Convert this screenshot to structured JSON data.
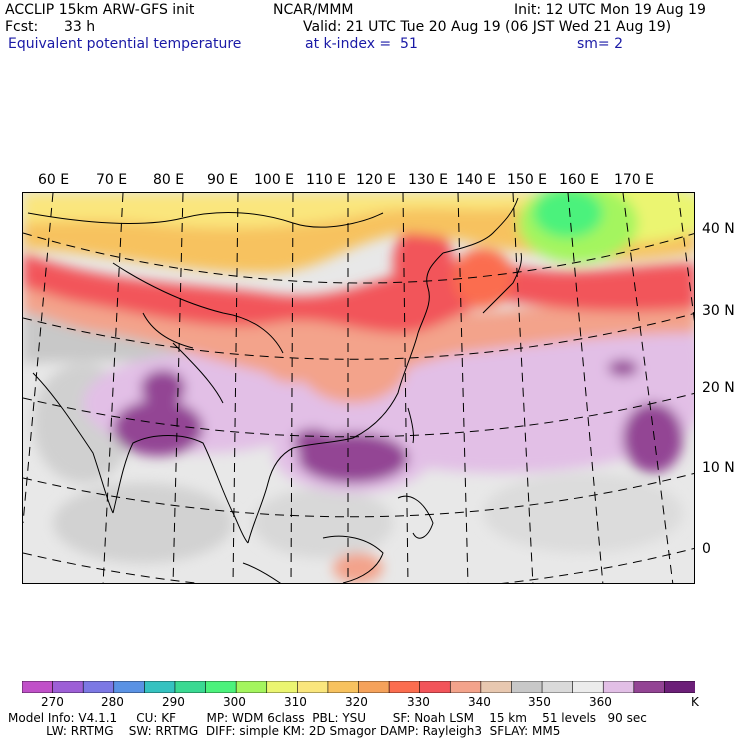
{
  "header": {
    "model": "ACCLIP 15km ARW-GFS init",
    "org": "NCAR/MMM",
    "init": "Init: 12 UTC Mon 19 Aug 19",
    "fcst_label": "Fcst:",
    "fcst_value": "33 h",
    "valid": "Valid: 21 UTC Tue 20 Aug 19 (06 JST Wed 21 Aug 19)",
    "field": "Equivalent potential temperature",
    "level": "at k-index =  51",
    "smooth": "sm= 2"
  },
  "map": {
    "lon_labels": [
      "60 E",
      "70 E",
      "80 E",
      "90 E",
      "100 E",
      "110 E",
      "120 E",
      "130 E",
      "140 E",
      "150 E",
      "160 E",
      "170 E"
    ],
    "lat_labels": [
      "40 N",
      "30 N",
      "20 N",
      "10 N",
      "0"
    ]
  },
  "colorbar": {
    "unit": "K",
    "tick_labels": [
      "270",
      "280",
      "290",
      "300",
      "310",
      "320",
      "330",
      "340",
      "350",
      "360"
    ],
    "colors": [
      "#c050c8",
      "#9d5fd6",
      "#7c78e4",
      "#5a92e4",
      "#35c2c0",
      "#3ad992",
      "#4cf27c",
      "#a4f55e",
      "#ebf571",
      "#fae67d",
      "#f7c25f",
      "#f5a25b",
      "#fb6d4f",
      "#f2545a",
      "#f3a38b",
      "#e8c8b0",
      "#c8c8c8",
      "#dadada",
      "#ececec",
      "#e2bfe6",
      "#934494",
      "#6c1f78"
    ]
  },
  "footer": {
    "line1": "Model Info: V4.1.1     CU: KF        MP: WDM 6class  PBL: YSU       SF: Noah LSM    15 km    51 levels   90 sec",
    "line2": "          LW: RRTMG    SW: RRTMG  DIFF: simple KM: 2D Smagor DAMP: Rayleigh3  SFLAY: MM5"
  }
}
